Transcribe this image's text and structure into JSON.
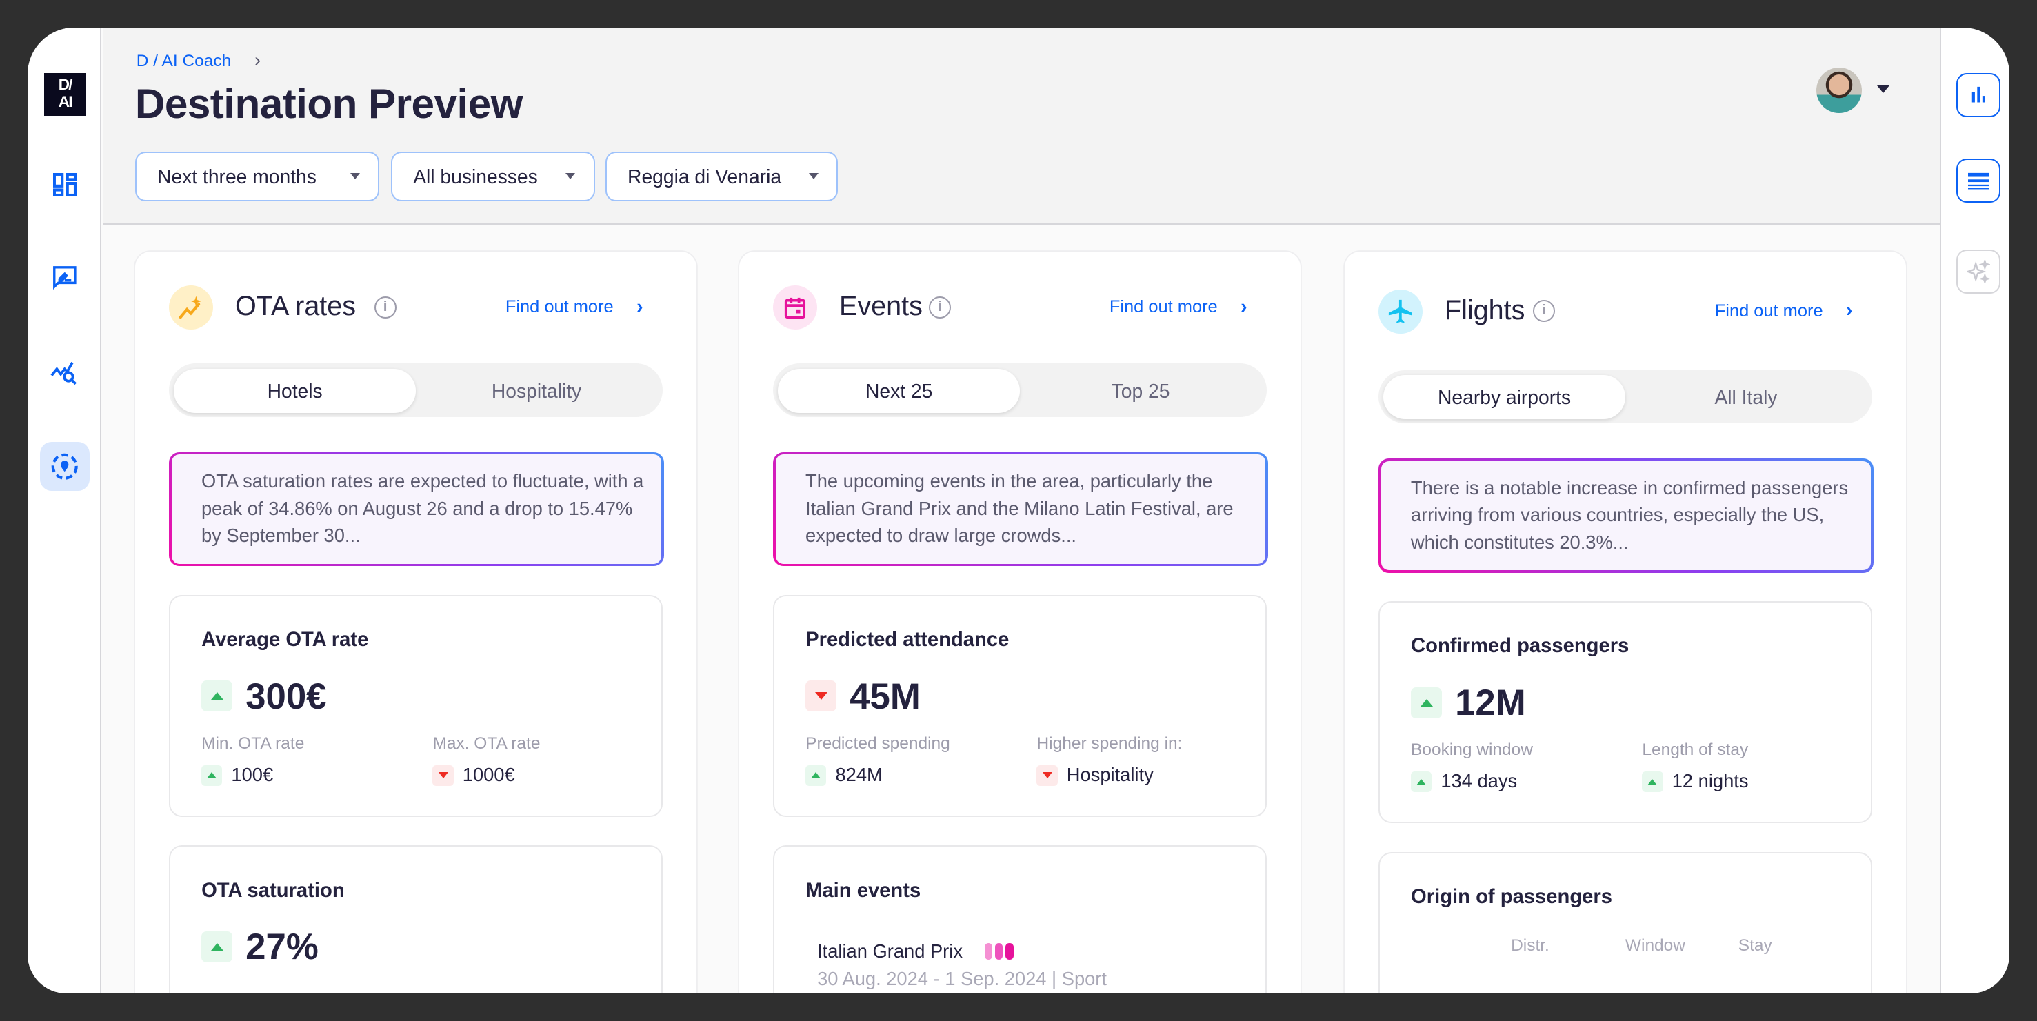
{
  "app": {
    "logo_text": "D/AI"
  },
  "sidebar": {
    "items": [
      {
        "icon": "dashboard-icon"
      },
      {
        "icon": "feedback-edit-icon"
      },
      {
        "icon": "trend-search-icon"
      },
      {
        "icon": "location-target-icon",
        "active": true
      }
    ]
  },
  "header": {
    "breadcrumb": "D / AI Coach",
    "title": "Destination Preview",
    "filters": [
      "Next three months",
      "All businesses",
      "Reggia di Venaria"
    ]
  },
  "right_toolbar": [
    "bar-chart-icon",
    "list-icon",
    "sparkle-icon"
  ],
  "colors": {
    "accent": "#0b62f5",
    "up": "#2fb45f",
    "down": "#ee2a22",
    "title": "#24223e"
  },
  "cards": {
    "ota": {
      "title": "OTA rates",
      "link": "Find out more",
      "tabs": [
        "Hotels",
        "Hospitality"
      ],
      "insight": "OTA saturation rates are expected to fluctuate, with a peak of 34.86% on August 26 and a drop to 15.47% by September 30...",
      "metric1": {
        "title": "Average OTA rate",
        "value": "300€",
        "trend": "up",
        "sub": [
          {
            "label": "Min. OTA rate",
            "value": "100€",
            "trend": "up"
          },
          {
            "label": "Max. OTA rate",
            "value": "1000€",
            "trend": "down"
          }
        ]
      },
      "metric2": {
        "title": "OTA saturation",
        "value": "27%",
        "trend": "up"
      }
    },
    "events": {
      "title": "Events",
      "link": "Find out more",
      "tabs": [
        "Next 25",
        "Top 25"
      ],
      "insight": "The upcoming events in the area, particularly the Italian Grand Prix and the Milano Latin Festival, are expected to draw large crowds...",
      "metric1": {
        "title": "Predicted attendance",
        "value": "45M",
        "trend": "down",
        "sub": [
          {
            "label": "Predicted spending",
            "value": "824M",
            "trend": "up"
          },
          {
            "label": "Higher spending in:",
            "value": "Hospitality",
            "trend": "down"
          }
        ]
      },
      "main_events": {
        "title": "Main events",
        "items": [
          {
            "name": "Italian Grand Prix",
            "dates": "30 Aug. 2024 - 1 Sep. 2024",
            "category": "Sport",
            "intensity": 3
          }
        ]
      }
    },
    "flights": {
      "title": "Flights",
      "link": "Find out more",
      "tabs": [
        "Nearby airports",
        "All Italy"
      ],
      "insight": "There is a notable increase in confirmed passengers arriving from various countries, especially the US, which constitutes 20.3%...",
      "metric1": {
        "title": "Confirmed passengers",
        "value": "12M",
        "trend": "up",
        "sub": [
          {
            "label": "Booking window",
            "value": "134 days",
            "trend": "up"
          },
          {
            "label": "Length of stay",
            "value": "12 nights",
            "trend": "up"
          }
        ]
      },
      "origin": {
        "title": "Origin of passengers",
        "columns": [
          "Distr.",
          "Window",
          "Stay"
        ]
      }
    }
  }
}
